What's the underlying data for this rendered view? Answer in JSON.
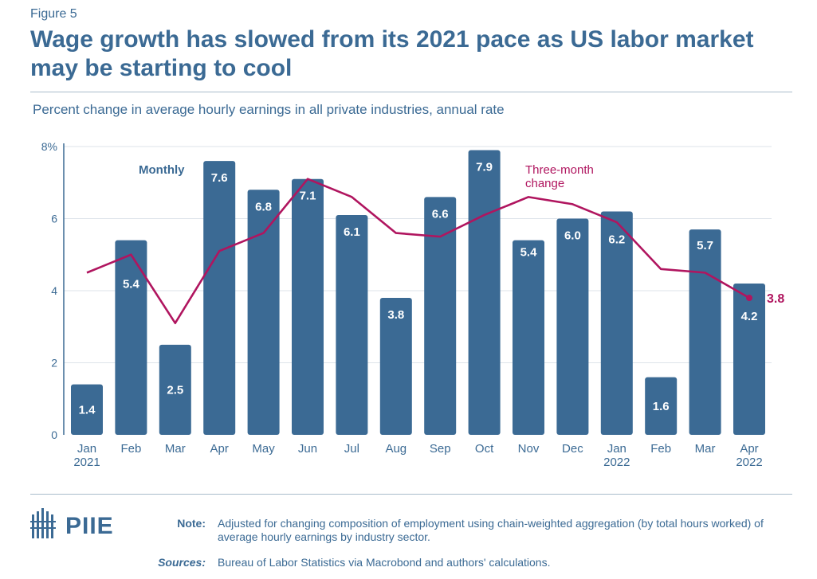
{
  "figure_label": "Figure 5",
  "title": "Wage growth has slowed from its 2021 pace as US labor market may be starting to cool",
  "subtitle": "Percent change in average hourly earnings in all private industries, annual rate",
  "colors": {
    "bar": "#3b6a94",
    "line": "#b0155f",
    "text": "#3b6a94",
    "grid": "#dde3ea"
  },
  "chart_data": {
    "type": "bar",
    "ylim": [
      0,
      8
    ],
    "yticks": [
      "0",
      "2",
      "4",
      "6",
      "8%"
    ],
    "ytick_values": [
      0,
      2,
      4,
      6,
      8
    ],
    "categories": [
      {
        "label": "Jan",
        "year": "2021"
      },
      {
        "label": "Feb",
        "year": ""
      },
      {
        "label": "Mar",
        "year": ""
      },
      {
        "label": "Apr",
        "year": ""
      },
      {
        "label": "May",
        "year": ""
      },
      {
        "label": "Jun",
        "year": ""
      },
      {
        "label": "Jul",
        "year": ""
      },
      {
        "label": "Aug",
        "year": ""
      },
      {
        "label": "Sep",
        "year": ""
      },
      {
        "label": "Oct",
        "year": ""
      },
      {
        "label": "Nov",
        "year": ""
      },
      {
        "label": "Dec",
        "year": ""
      },
      {
        "label": "Jan",
        "year": "2022"
      },
      {
        "label": "Feb",
        "year": ""
      },
      {
        "label": "Mar",
        "year": ""
      },
      {
        "label": "Apr",
        "year": "2022"
      }
    ],
    "series": [
      {
        "name": "Monthly",
        "kind": "bar",
        "values": [
          1.4,
          5.4,
          2.5,
          7.6,
          6.8,
          7.1,
          6.1,
          3.8,
          6.6,
          7.9,
          5.4,
          6.0,
          6.2,
          1.6,
          5.7,
          4.2
        ],
        "labels": [
          "1.4",
          "5.4",
          "2.5",
          "7.6",
          "6.8",
          "7.1",
          "6.1",
          "3.8",
          "6.6",
          "7.9",
          "5.4",
          "6.0",
          "6.2",
          "1.6",
          "5.7",
          "4.2"
        ]
      },
      {
        "name": "Three-month change",
        "name_lines": [
          "Three-month",
          "change"
        ],
        "kind": "line",
        "values": [
          4.5,
          5.0,
          3.1,
          5.1,
          5.6,
          7.1,
          6.6,
          5.6,
          5.5,
          6.1,
          6.6,
          6.4,
          5.9,
          4.6,
          4.5,
          3.8
        ],
        "end_label": "3.8"
      }
    ]
  },
  "footer": {
    "logo_text": "PIIE",
    "note_label": "Note:",
    "note_text": "Adjusted for changing composition of employment using chain-weighted aggregation (by total hours worked) of average hourly earnings by industry sector.",
    "sources_label": "Sources:",
    "sources_text": "Bureau of Labor Statistics via Macrobond and authors' calculations."
  }
}
